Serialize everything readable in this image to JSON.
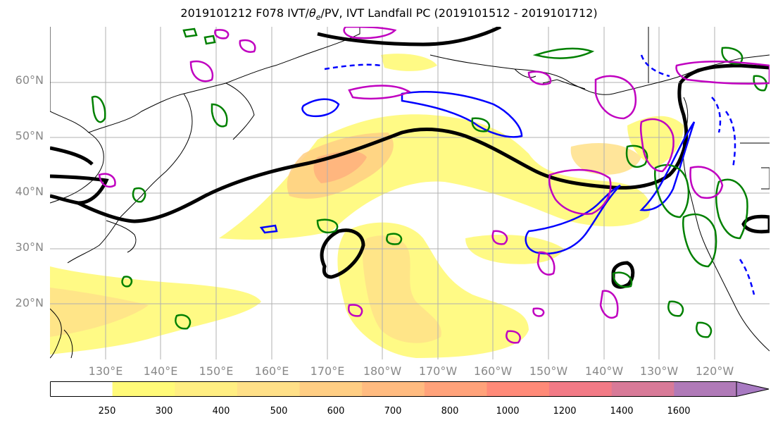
{
  "title": "2019101212 F078 IVT/θe/PV, IVT Landfall PC (2019101512 - 2019101712)",
  "title_parts": {
    "prefix": "2019101212 F078 IVT/",
    "theta": "θ",
    "theta_sub": "e",
    "suffix": "/PV, IVT Landfall PC (2019101512 - 2019101712)"
  },
  "map": {
    "lat_labels": [
      "60°N",
      "50°N",
      "40°N",
      "30°N",
      "20°N"
    ],
    "lon_labels": [
      "130°E",
      "140°E",
      "150°E",
      "160°E",
      "170°E",
      "180°W",
      "170°W",
      "160°W",
      "150°W",
      "140°W",
      "130°W",
      "120°W"
    ],
    "lat_range": [
      10,
      70
    ],
    "lon_range": [
      120,
      250
    ],
    "gridlines": true
  },
  "colorbar": {
    "ticks": [
      "250",
      "300",
      "400",
      "500",
      "600",
      "700",
      "800",
      "1000",
      "1200",
      "1400",
      "1600"
    ],
    "colors": [
      "#ffffff",
      "#fffa78",
      "#ffee82",
      "#ffe088",
      "#ffce84",
      "#ffbb80",
      "#ffa27a",
      "#ff8a78",
      "#f27a86",
      "#d87a98",
      "#b07ab8",
      "#a87ac2"
    ],
    "extend": "max"
  },
  "colors": {
    "ivt_contour": "#0000ff",
    "pv_contour": "#000000",
    "theta_contour": "#008000",
    "landfall_pc": "#c000c0",
    "coastline": "#000000",
    "grid": "#b0b0b0"
  }
}
